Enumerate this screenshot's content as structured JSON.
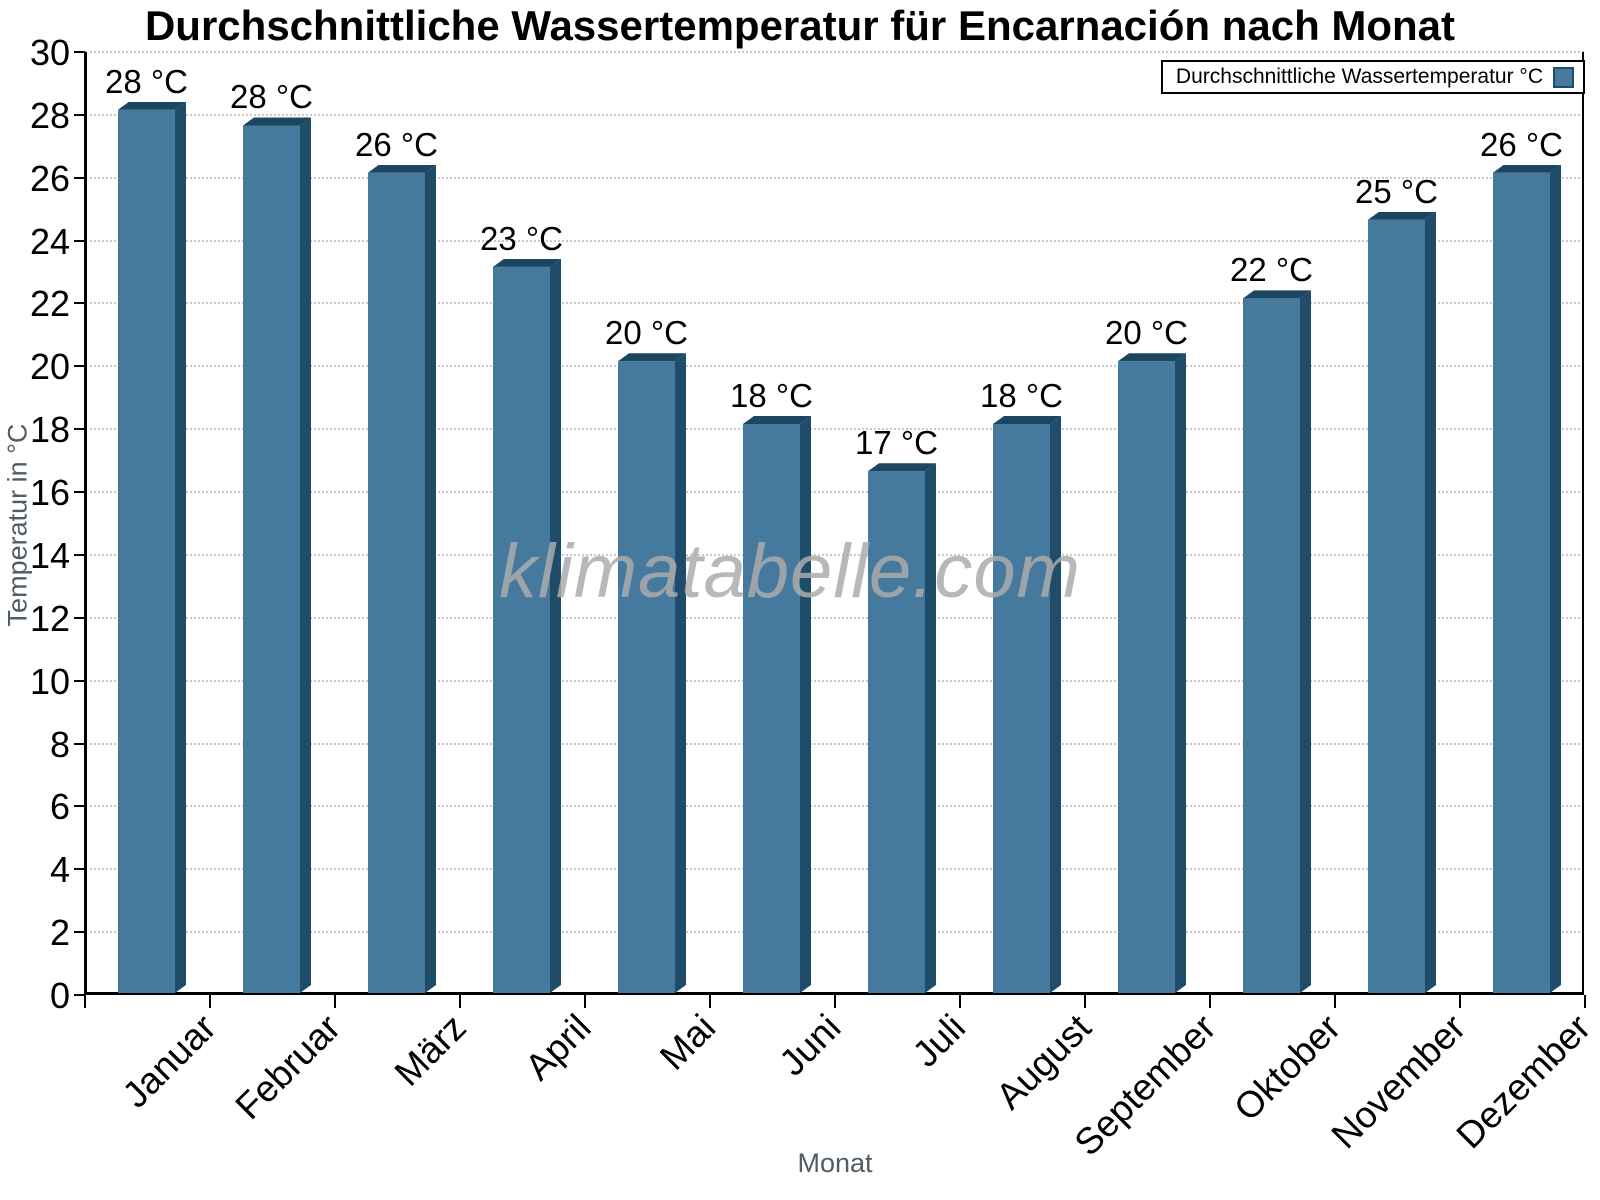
{
  "title": "Durchschnittliche Wassertemperatur für Encarnación nach Monat",
  "watermark": "klimatabelle.com",
  "legend": {
    "label": "Durchschnittliche Wassertemperatur °C",
    "position": "top-right"
  },
  "chart_data": {
    "type": "bar",
    "title": "Durchschnittliche Wassertemperatur für Encarnación nach Monat",
    "series_name": "Durchschnittliche Wassertemperatur °C",
    "categories": [
      "Januar",
      "Februar",
      "März",
      "April",
      "Mai",
      "Juni",
      "Juli",
      "August",
      "September",
      "Oktober",
      "November",
      "Dezember"
    ],
    "values": [
      28.1,
      27.6,
      26.1,
      23.1,
      20.1,
      18.1,
      16.6,
      18.1,
      20.1,
      22.1,
      24.6,
      26.1
    ],
    "point_labels": [
      "28 °C",
      "28 °C",
      "26 °C",
      "23 °C",
      "20 °C",
      "18 °C",
      "17 °C",
      "18 °C",
      "20 °C",
      "22 °C",
      "25 °C",
      "26 °C"
    ],
    "xlabel": "Monat",
    "ylabel": "Temperatur in °C",
    "ylim": [
      0,
      30
    ],
    "y_ticks": [
      0,
      2,
      4,
      6,
      8,
      10,
      12,
      14,
      16,
      18,
      20,
      22,
      24,
      26,
      28,
      30
    ],
    "grid": "dotted-horizontal",
    "legend_position": "top-right",
    "colors": {
      "bar": "#45799e",
      "bar_shade_top": "#1c4660",
      "bar_shade_side": "#1e4c69",
      "grid": "#c9c9c9",
      "axis": "#000000",
      "axis_title": "#4f5d66",
      "tick_label": "#000000",
      "watermark": "#acacac",
      "background": "#ffffff"
    }
  }
}
